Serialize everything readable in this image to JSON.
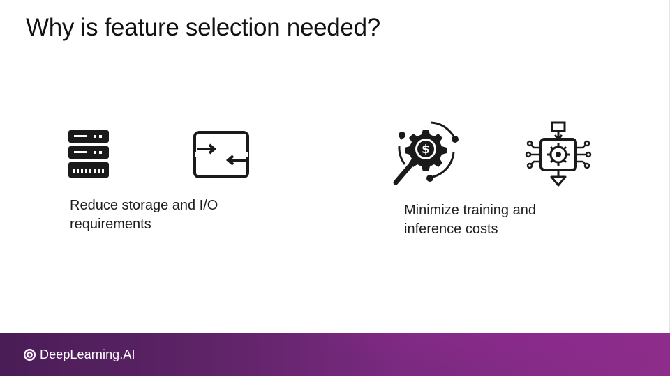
{
  "slide": {
    "title": "Why is feature selection needed?",
    "left_block": {
      "caption_line1": "Reduce storage and I/O",
      "caption_line2": "requirements",
      "icons": [
        "server-rack-icon",
        "transfer-arrows-icon"
      ]
    },
    "right_block": {
      "caption_line1": "Minimize training and",
      "caption_line2": "inference costs",
      "icons": [
        "cost-analysis-gear-icon",
        "processor-chip-icon"
      ]
    }
  },
  "footer": {
    "brand": "DeepLearning.AI",
    "colors": {
      "start": "#4a1d57",
      "end": "#8e2d8b"
    }
  }
}
